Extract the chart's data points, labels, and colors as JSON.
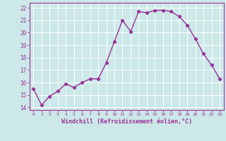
{
  "x": [
    0,
    1,
    2,
    3,
    4,
    5,
    6,
    7,
    8,
    9,
    10,
    11,
    12,
    13,
    14,
    15,
    16,
    17,
    18,
    19,
    20,
    21,
    22,
    23
  ],
  "y": [
    15.5,
    14.2,
    14.9,
    15.3,
    15.9,
    15.6,
    16.0,
    16.3,
    16.3,
    17.6,
    19.3,
    21.0,
    20.1,
    21.7,
    21.6,
    21.8,
    21.8,
    21.7,
    21.3,
    20.6,
    19.5,
    18.3,
    17.4,
    16.3
  ],
  "line_color": "#993399",
  "marker": "D",
  "marker_size": 2.2,
  "linewidth": 1.0,
  "xlabel": "Windchill (Refroidissement éolien,°C)",
  "xlabel_fontsize": 6,
  "xtick_labels": [
    "0",
    "1",
    "2",
    "3",
    "4",
    "5",
    "6",
    "7",
    "8",
    "9",
    "10",
    "11",
    "12",
    "13",
    "14",
    "15",
    "16",
    "17",
    "18",
    "19",
    "20",
    "21",
    "22",
    "23"
  ],
  "ytick_labels": [
    "14",
    "15",
    "16",
    "17",
    "18",
    "19",
    "20",
    "21",
    "22"
  ],
  "ylim": [
    13.8,
    22.4
  ],
  "xlim": [
    -0.5,
    23.5
  ],
  "bg_color": "#cce8e8",
  "grid_color": "#ffffff",
  "tick_color": "#993399",
  "label_color": "#993399"
}
